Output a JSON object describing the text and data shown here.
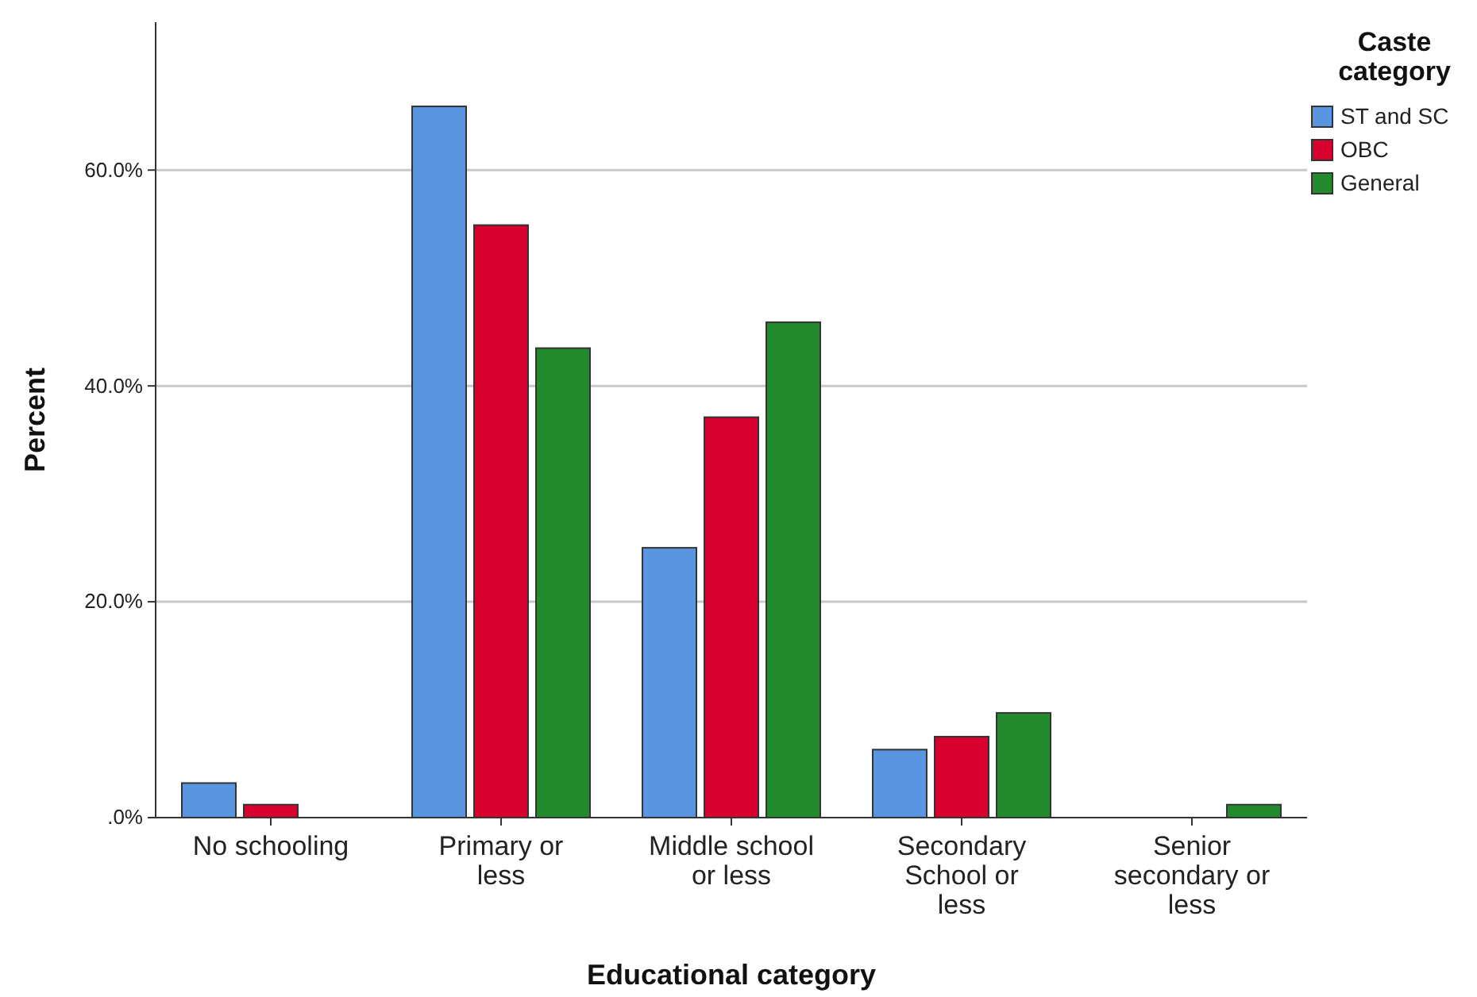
{
  "chart_data": {
    "type": "bar",
    "xlabel": "Educational category",
    "ylabel": "Percent",
    "legend_title": "Caste category",
    "categories": [
      "No schooling",
      "Primary or less",
      "Middle school or less",
      "Secondary School or less",
      "Senior secondary or less"
    ],
    "series": [
      {
        "name": "ST and SC",
        "color": "#5a96e0",
        "values": [
          3.2,
          65.9,
          25.0,
          6.3,
          0
        ]
      },
      {
        "name": "OBC",
        "color": "#d7002f",
        "values": [
          1.2,
          54.9,
          37.1,
          7.5,
          0
        ]
      },
      {
        "name": "General",
        "color": "#238a2e",
        "values": [
          0,
          43.5,
          45.9,
          9.7,
          1.2
        ]
      }
    ],
    "ylim": [
      0,
      73.7
    ],
    "yticks": [
      {
        "value": 0,
        "label": ".0%"
      },
      {
        "value": 20,
        "label": "20.0%"
      },
      {
        "value": 40,
        "label": "40.0%"
      },
      {
        "value": 60,
        "label": "60.0%"
      }
    ],
    "grid": "y",
    "legend": "top right"
  }
}
